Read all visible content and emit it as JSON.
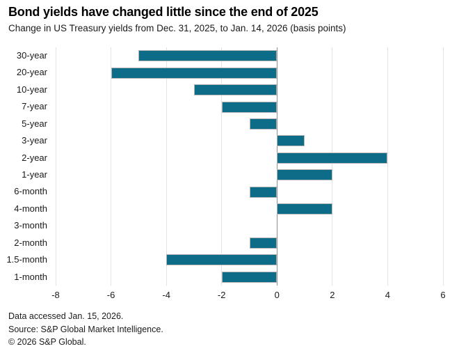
{
  "header": {
    "title": "Bond yields have changed little since the end of 2025",
    "subtitle": "Change in US Treasury yields from Dec. 31, 2025, to Jan. 14, 2026 (basis points)"
  },
  "chart_data": {
    "type": "bar",
    "orientation": "horizontal",
    "title": "Bond yields have changed little since the end of 2025",
    "subtitle": "Change in US Treasury yields from Dec. 31, 2025, to Jan. 14, 2026 (basis points)",
    "xlabel": "",
    "ylabel": "",
    "categories": [
      "30-year",
      "20-year",
      "10-year",
      "7-year",
      "5-year",
      "3-year",
      "2-year",
      "1-year",
      "6-month",
      "4-month",
      "3-month",
      "2-month",
      "1.5-month",
      "1-month"
    ],
    "values": [
      -5,
      -6,
      -3,
      -2,
      -1,
      1,
      4,
      2,
      -1,
      2,
      0,
      -1,
      -4,
      -2
    ],
    "xlim": [
      -8,
      6
    ],
    "xticks": [
      -8,
      -6,
      -4,
      -2,
      0,
      2,
      4,
      6
    ],
    "grid": true,
    "legend": "none",
    "bar_color": "#0d6c87",
    "bar_border_color": "#b5b5b5",
    "gridline_color": "#e3e3e3",
    "zero_line_color": "#8e8e8e"
  },
  "footer": {
    "lines": [
      "Data accessed Jan. 15, 2026.",
      "Source: S&P Global Market Intelligence.",
      "© 2026 S&P Global."
    ]
  }
}
